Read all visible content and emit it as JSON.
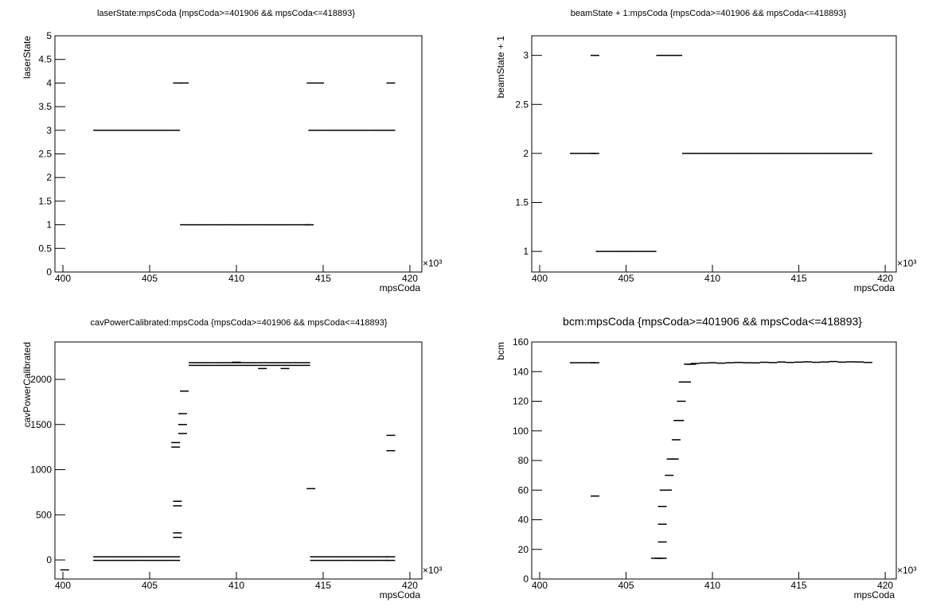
{
  "chart_data": [
    {
      "type": "scatter",
      "title": "laserState:mpsCoda {mpsCoda>=401906 && mpsCoda<=418893}",
      "xlabel": "mpsCoda",
      "ylabel": "laserState",
      "x_multiplier": "×10³",
      "x": [
        402,
        402.5,
        403,
        403.5,
        404,
        404.5,
        405,
        405.5,
        406,
        406.5,
        406.6,
        407,
        407,
        407.5,
        408,
        408.5,
        409,
        409.5,
        410,
        410.5,
        411,
        411.5,
        412,
        412.5,
        413,
        413.5,
        414,
        414.2,
        414.4,
        414.9,
        415.4,
        415.9,
        416.4,
        416.9,
        417.4,
        417.9,
        418.4,
        418.9,
        414.3,
        414.8,
        418.9
      ],
      "values": [
        3,
        3,
        3,
        3,
        3,
        3,
        3,
        3,
        3,
        3,
        4,
        4,
        1,
        1,
        1,
        1,
        1,
        1,
        1,
        1,
        1,
        1,
        1,
        1,
        1,
        1,
        1,
        1,
        3,
        3,
        3,
        3,
        3,
        3,
        3,
        3,
        3,
        3,
        4,
        4,
        4
      ],
      "color": "#000000",
      "xlim": [
        399.54,
        420.69
      ],
      "xticks": [
        400,
        405,
        410,
        415,
        420
      ],
      "ylim": [
        0,
        5
      ],
      "yticks": [
        0,
        0.5,
        1,
        1.5,
        2,
        2.5,
        3,
        3.5,
        4,
        4.5,
        5
      ]
    },
    {
      "type": "scatter",
      "title": "beamState + 1:mpsCoda {mpsCoda>=401906 && mpsCoda<=418893}",
      "xlabel": "mpsCoda",
      "ylabel": "beamState + 1",
      "x_multiplier": "×10³",
      "x": [
        402,
        402.5,
        403,
        403.2,
        403.2,
        403.5,
        404,
        404.5,
        405,
        405.5,
        406,
        406.5,
        407,
        407.5,
        408,
        408.5,
        409,
        409.5,
        410,
        410.5,
        411,
        411.5,
        412,
        412.5,
        413,
        413.5,
        414,
        414.5,
        415,
        415.5,
        416,
        416.5,
        417,
        417.5,
        418,
        418.5,
        419
      ],
      "values": [
        2,
        2,
        2,
        2,
        3,
        1,
        1,
        1,
        1,
        1,
        1,
        1,
        3,
        3,
        3,
        2,
        2,
        2,
        2,
        2,
        2,
        2,
        2,
        2,
        2,
        2,
        2,
        2,
        2,
        2,
        2,
        2,
        2,
        2,
        2,
        2,
        2
      ],
      "color": "#000000",
      "xlim": [
        399.54,
        420.64
      ],
      "xticks": [
        400,
        405,
        410,
        415,
        420
      ],
      "ylim": [
        0.79,
        3.2
      ],
      "yticks": [
        1,
        1.5,
        2,
        2.5,
        3
      ]
    },
    {
      "type": "scatter",
      "title": "cavPowerCalibrated:mpsCoda {mpsCoda>=401906 && mpsCoda<=418893}",
      "xlabel": "mpsCoda",
      "ylabel": "cavPowerCalibrated",
      "x_multiplier": "×10³",
      "x": [
        402,
        402.5,
        403,
        403.5,
        404,
        404.5,
        405,
        405.5,
        406,
        406.5,
        402,
        402.5,
        403,
        403.5,
        404,
        404.5,
        405,
        405.5,
        406,
        406.5,
        414.5,
        415,
        415.5,
        416,
        416.5,
        417,
        417.5,
        418,
        418.5,
        418.9,
        414.5,
        415,
        415.5,
        416,
        416.5,
        417,
        417.5,
        418,
        418.5,
        418.9,
        407.5,
        408,
        408.5,
        409,
        409.5,
        410,
        410.5,
        411,
        411.5,
        412,
        412.5,
        413,
        413.5,
        414,
        407.5,
        408,
        408.5,
        409,
        409.5,
        410,
        410.5,
        411,
        411.5,
        412,
        412.5,
        413,
        413.5,
        414,
        406.5,
        406.5,
        406.6,
        406.6,
        406.6,
        406.6,
        406.9,
        406.9,
        406.9,
        407,
        414.3,
        418.9,
        418.9,
        400.1,
        412.8,
        411.5,
        410
      ],
      "values": [
        35,
        35,
        35,
        35,
        35,
        35,
        35,
        35,
        35,
        35,
        -5,
        -5,
        -5,
        -5,
        -5,
        -5,
        -5,
        -5,
        -5,
        -5,
        35,
        35,
        35,
        35,
        35,
        35,
        35,
        35,
        35,
        35,
        -5,
        -5,
        -5,
        -5,
        -5,
        -5,
        -5,
        -5,
        -5,
        -5,
        2185,
        2185,
        2185,
        2185,
        2185,
        2185,
        2185,
        2185,
        2185,
        2185,
        2185,
        2185,
        2185,
        2185,
        2155,
        2155,
        2155,
        2155,
        2155,
        2155,
        2155,
        2155,
        2155,
        2155,
        2155,
        2155,
        2155,
        2155,
        1250,
        1300,
        650,
        600,
        300,
        250,
        1400,
        1500,
        1620,
        1870,
        790,
        1380,
        1210,
        -110,
        2120,
        2120,
        2190
      ],
      "color": "#000000",
      "xlim": [
        399.54,
        420.69
      ],
      "xticks": [
        400,
        405,
        410,
        415,
        420
      ],
      "ylim": [
        -211,
        2414
      ],
      "yticks": [
        0,
        500,
        1000,
        1500,
        2000
      ]
    },
    {
      "type": "scatter",
      "title": "bcm:mpsCoda {mpsCoda>=401906 && mpsCoda<=418893}",
      "xlabel": "mpsCoda",
      "ylabel": "bcm",
      "x_multiplier": "×10³",
      "x": [
        402,
        402.5,
        403,
        403.2,
        403.2,
        406.7,
        406.9,
        407.1,
        407.1,
        407.1,
        407.1,
        407.2,
        407.4,
        407.5,
        407.6,
        407.8,
        407.9,
        408,
        408.1,
        408.2,
        408.3,
        408.5,
        408.6,
        408.8,
        409,
        409.5,
        410,
        410.5,
        411,
        411.5,
        412,
        412.5,
        413,
        413.5,
        414,
        414.5,
        415,
        415.5,
        416,
        416.5,
        417,
        417.5,
        418,
        418.5,
        419
      ],
      "values": [
        146,
        146,
        146,
        146,
        56,
        14,
        14,
        14,
        25,
        37,
        49,
        60,
        60,
        70,
        81,
        81,
        94,
        107,
        107,
        120,
        133,
        133,
        145,
        145,
        145.5,
        145.8,
        146,
        145.7,
        146,
        146.2,
        146,
        145.9,
        146.3,
        146.1,
        146.5,
        146.2,
        146.4,
        146.6,
        146.3,
        146.5,
        146.8,
        146.4,
        146.6,
        146.5,
        146.2
      ],
      "color": "#000000",
      "xlim": [
        399.54,
        420.64
      ],
      "xticks": [
        400,
        405,
        410,
        415,
        420
      ],
      "ylim": [
        0,
        160
      ],
      "yticks": [
        0,
        20,
        40,
        60,
        80,
        100,
        120,
        140,
        160
      ]
    }
  ]
}
